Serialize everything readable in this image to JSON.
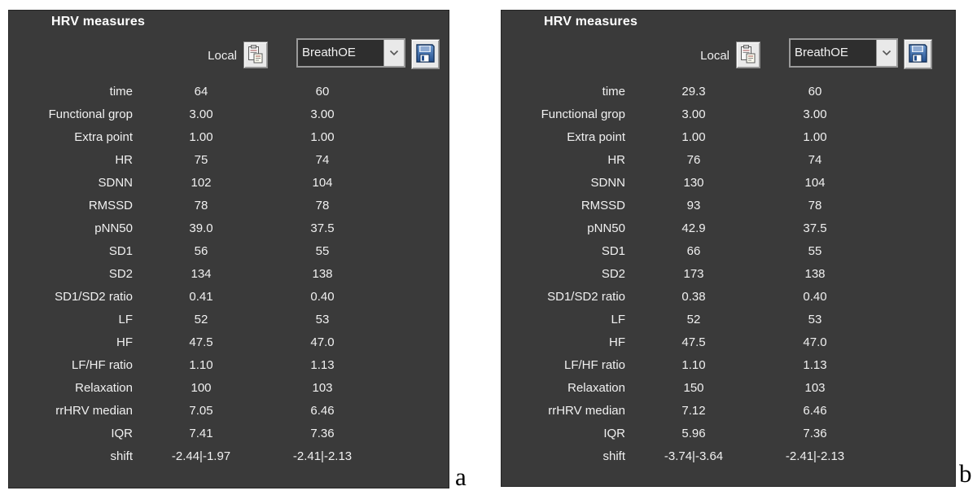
{
  "colors": {
    "page_bg": "#ffffff",
    "panel_bg": "#3a3a3a",
    "panel_border": "#262626",
    "panel_text": "#f0f0f0",
    "title_text": "#ffffff",
    "button_bg": "#e9e9e9",
    "dropdown_bg": "#2e2e2e",
    "dropdown_border": "#9a9a9a",
    "floppy_blue": "#2e5f9e",
    "caption_text": "#000000"
  },
  "icons": {
    "clipboard": "copy-to-clipboard-icon",
    "save": "save-floppy-icon",
    "chevron": "chevron-down-icon"
  },
  "panels": [
    {
      "caption": "a",
      "title": "HRV measures",
      "local_label": "Local",
      "dropdown_value": "BreathOE",
      "rows": [
        {
          "label": "time",
          "local": "64",
          "breathoe": "60"
        },
        {
          "label": "Functional grop",
          "local": "3.00",
          "breathoe": "3.00"
        },
        {
          "label": "Extra point",
          "local": "1.00",
          "breathoe": "1.00"
        },
        {
          "label": "HR",
          "local": "75",
          "breathoe": "74"
        },
        {
          "label": "SDNN",
          "local": "102",
          "breathoe": "104"
        },
        {
          "label": "RMSSD",
          "local": "78",
          "breathoe": "78"
        },
        {
          "label": "pNN50",
          "local": "39.0",
          "breathoe": "37.5"
        },
        {
          "label": "SD1",
          "local": "56",
          "breathoe": "55"
        },
        {
          "label": "SD2",
          "local": "134",
          "breathoe": "138"
        },
        {
          "label": "SD1/SD2 ratio",
          "local": "0.41",
          "breathoe": "0.40"
        },
        {
          "label": "LF",
          "local": "52",
          "breathoe": "53"
        },
        {
          "label": "HF",
          "local": "47.5",
          "breathoe": "47.0"
        },
        {
          "label": "LF/HF ratio",
          "local": "1.10",
          "breathoe": "1.13"
        },
        {
          "label": "Relaxation",
          "local": "100",
          "breathoe": "103"
        },
        {
          "label": "rrHRV median",
          "local": "7.05",
          "breathoe": "6.46"
        },
        {
          "label": "IQR",
          "local": "7.41",
          "breathoe": "7.36"
        },
        {
          "label": "shift",
          "local": "-2.44|-1.97",
          "breathoe": "-2.41|-2.13"
        }
      ]
    },
    {
      "caption": "b",
      "title": "HRV measures",
      "local_label": "Local",
      "dropdown_value": "BreathOE",
      "rows": [
        {
          "label": "time",
          "local": "29.3",
          "breathoe": "60"
        },
        {
          "label": "Functional grop",
          "local": "3.00",
          "breathoe": "3.00"
        },
        {
          "label": "Extra point",
          "local": "1.00",
          "breathoe": "1.00"
        },
        {
          "label": "HR",
          "local": "76",
          "breathoe": "74"
        },
        {
          "label": "SDNN",
          "local": "130",
          "breathoe": "104"
        },
        {
          "label": "RMSSD",
          "local": "93",
          "breathoe": "78"
        },
        {
          "label": "pNN50",
          "local": "42.9",
          "breathoe": "37.5"
        },
        {
          "label": "SD1",
          "local": "66",
          "breathoe": "55"
        },
        {
          "label": "SD2",
          "local": "173",
          "breathoe": "138"
        },
        {
          "label": "SD1/SD2 ratio",
          "local": "0.38",
          "breathoe": "0.40"
        },
        {
          "label": "LF",
          "local": "52",
          "breathoe": "53"
        },
        {
          "label": "HF",
          "local": "47.5",
          "breathoe": "47.0"
        },
        {
          "label": "LF/HF ratio",
          "local": "1.10",
          "breathoe": "1.13"
        },
        {
          "label": "Relaxation",
          "local": "150",
          "breathoe": "103"
        },
        {
          "label": "rrHRV median",
          "local": "7.12",
          "breathoe": "6.46"
        },
        {
          "label": "IQR",
          "local": "5.96",
          "breathoe": "7.36"
        },
        {
          "label": "shift",
          "local": "-3.74|-3.64",
          "breathoe": "-2.41|-2.13"
        }
      ]
    }
  ]
}
